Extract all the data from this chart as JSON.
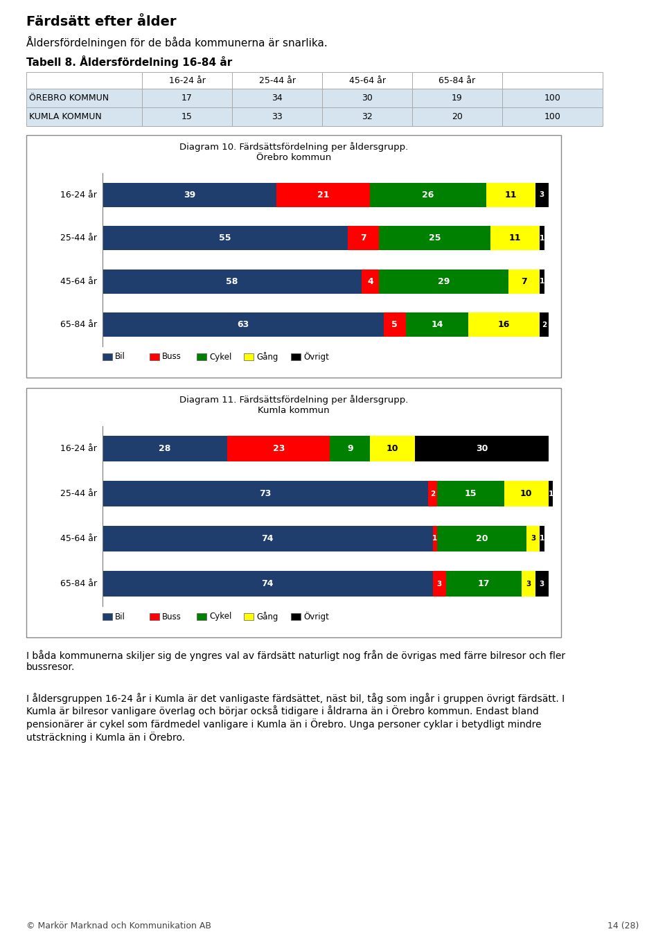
{
  "page_title": "Färdsätt efter ålder",
  "subtitle": "Åldersfördelningen för de båda kommunerna är snarlika.",
  "table_title": "Tabell 8. Åldersfördelning 16-84 år",
  "table_headers": [
    "",
    "16-24 år",
    "25-44 år",
    "45-64 år",
    "65-84 år",
    ""
  ],
  "table_rows": [
    [
      "ÖREBRO KOMMUN",
      "17",
      "34",
      "30",
      "19",
      "100"
    ],
    [
      "KUMLA KOMMUN",
      "15",
      "33",
      "32",
      "20",
      "100"
    ]
  ],
  "diagram1_title": "Diagram 10. Färdsättsfördelning per åldersgrupp.\nÖrebro kommun",
  "diagram1_categories": [
    "16-24 år",
    "25-44 år",
    "45-64 år",
    "65-84 år"
  ],
  "diagram1_data": {
    "Bil": [
      39,
      55,
      58,
      63
    ],
    "Buss": [
      21,
      7,
      4,
      5
    ],
    "Cykel": [
      26,
      25,
      29,
      14
    ],
    "Gång": [
      11,
      11,
      7,
      16
    ],
    "Övrigt": [
      3,
      1,
      1,
      2
    ]
  },
  "diagram2_title": "Diagram 11. Färdsättsfördelning per åldersgrupp.\nKumla kommun",
  "diagram2_categories": [
    "16-24 år",
    "25-44 år",
    "45-64 år",
    "65-84 år"
  ],
  "diagram2_data": {
    "Bil": [
      28,
      73,
      74,
      74
    ],
    "Buss": [
      23,
      2,
      1,
      3
    ],
    "Cykel": [
      9,
      15,
      20,
      17
    ],
    "Gång": [
      10,
      10,
      3,
      3
    ],
    "Övrigt": [
      30,
      1,
      1,
      3
    ]
  },
  "colors": {
    "Bil": "#1F3E6E",
    "Buss": "#FF0000",
    "Cykel": "#008000",
    "Gång": "#FFFF00",
    "Övrigt": "#000000"
  },
  "legend_labels": [
    "Bil",
    "Buss",
    "Cykel",
    "Gång",
    "Övrigt"
  ],
  "body_text1": "I båda kommunerna skiljer sig de yngres val av färdsätt naturligt nog från de övrigas med färre bilresor och fler\nbussresor.",
  "body_text2": "I åldersgruppen 16-24 år i Kumla är det vanligaste färdsättet, näst bil, tåg som ingår i gruppen övrigt färdsätt. I\nKumla är bilresor vanligare överlag och börjar också tidigare i åldrarna än i Örebro kommun. Endast bland\npensionärer är cykel som färdmedel vanligare i Kumla än i Örebro. Unga personer cyklar i betydligt mindre\nutsträckning i Kumla än i Örebro.",
  "footer_left": "© Markör Marknad och Kommunikation AB",
  "footer_right": "14 (28)",
  "table_cell_color": "#D6E4F0",
  "background_color": "#FFFFFF"
}
